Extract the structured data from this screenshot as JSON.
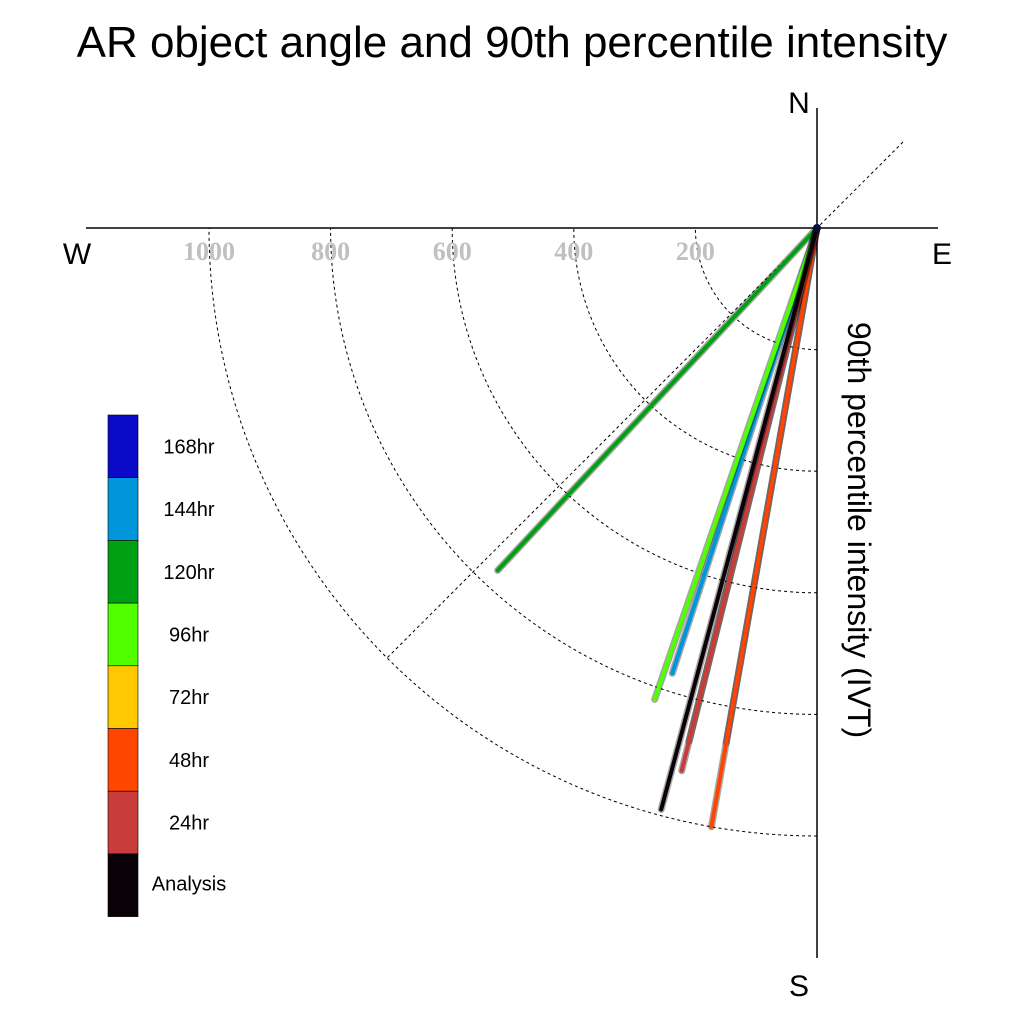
{
  "chart_data": {
    "type": "polar-line",
    "title": "AR object angle and 90th percentile intensity",
    "radial_axis_label": "90th percentile intensity (IVT)",
    "compass": {
      "north": "N",
      "south": "S",
      "east": "E",
      "west": "W"
    },
    "radial_ticks": [
      200,
      400,
      600,
      800,
      1000
    ],
    "radial_tick_labels": [
      "200",
      "400",
      "600",
      "800",
      "1000"
    ],
    "rmax": 1000,
    "grid": true,
    "legend_position": "left",
    "series": [
      {
        "name": "168hr",
        "color": "#0a0ac8",
        "angle_deg": 190,
        "ivt": 860
      },
      {
        "name": "144hr",
        "color": "#0096dc",
        "angle_deg": 198,
        "ivt": 770
      },
      {
        "name": "120hr",
        "color": "#00a014",
        "angle_deg": 223,
        "ivt": 770
      },
      {
        "name": "96hr",
        "color": "#50ff00",
        "angle_deg": 199,
        "ivt": 820
      },
      {
        "name": "72hr",
        "color": "#ffc800",
        "angle_deg": 194,
        "ivt": 870
      },
      {
        "name": "48hr",
        "color": "#ff4600",
        "angle_deg": 190,
        "ivt": 1000
      },
      {
        "name": "24hr",
        "color": "#c83c3c",
        "angle_deg": 194,
        "ivt": 920
      },
      {
        "name": "Analysis",
        "color": "#0a0008",
        "angle_deg": 195,
        "ivt": 990
      }
    ]
  }
}
